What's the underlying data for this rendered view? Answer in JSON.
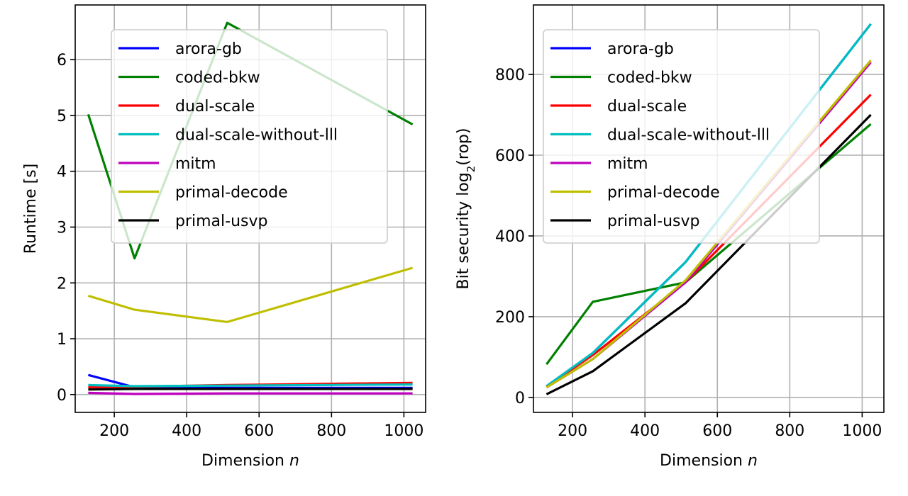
{
  "chart_data": [
    {
      "type": "line",
      "xlabel": "Dimension",
      "xlabel_var": "n",
      "ylabel": "Runtime [s]",
      "xlim": [
        92,
        1060
      ],
      "ylim": [
        -0.32,
        6.98
      ],
      "xticks": [
        200,
        400,
        600,
        800,
        1000
      ],
      "yticks": [
        0,
        1,
        2,
        3,
        4,
        5,
        6
      ],
      "grid": true,
      "legend": "top-center",
      "x": [
        128,
        256,
        512,
        1024
      ],
      "series": [
        {
          "name": "arora-gb",
          "color": "#0000ff",
          "values": [
            0.35,
            0.13,
            0.12,
            0.12
          ]
        },
        {
          "name": "coded-bkw",
          "color": "#008000",
          "values": [
            5.02,
            2.44,
            6.66,
            4.84
          ]
        },
        {
          "name": "dual-scale",
          "color": "#ff0000",
          "values": [
            0.13,
            0.14,
            0.17,
            0.21
          ]
        },
        {
          "name": "dual-scale-without-lll",
          "color": "#00bfbf",
          "values": [
            0.17,
            0.15,
            0.16,
            0.18
          ]
        },
        {
          "name": "mitm",
          "color": "#bf00bf",
          "values": [
            0.03,
            0.01,
            0.02,
            0.02
          ]
        },
        {
          "name": "primal-decode",
          "color": "#bfbf00",
          "values": [
            1.77,
            1.52,
            1.3,
            2.27
          ]
        },
        {
          "name": "primal-usvp",
          "color": "#000000",
          "values": [
            0.09,
            0.1,
            0.1,
            0.1
          ]
        }
      ]
    },
    {
      "type": "line",
      "xlabel": "Dimension",
      "xlabel_var": "n",
      "ylabel": "Bit security log",
      "ylabel_sub": "2",
      "ylabel_suffix": "(rop)",
      "xlim": [
        92,
        1060
      ],
      "ylim": [
        -37,
        972
      ],
      "xticks": [
        200,
        400,
        600,
        800,
        1000
      ],
      "yticks": [
        0,
        200,
        400,
        600,
        800
      ],
      "grid": true,
      "legend": "top-left",
      "x": [
        128,
        256,
        512,
        1024
      ],
      "series": [
        {
          "name": "arora-gb",
          "color": "#0000ff",
          "values": [
            28,
            110,
            335,
            925
          ]
        },
        {
          "name": "coded-bkw",
          "color": "#008000",
          "values": [
            82,
            237,
            285,
            677
          ]
        },
        {
          "name": "dual-scale",
          "color": "#ff0000",
          "values": [
            27,
            105,
            285,
            750
          ]
        },
        {
          "name": "dual-scale-without-lll",
          "color": "#00bfbf",
          "values": [
            28,
            110,
            335,
            925
          ]
        },
        {
          "name": "mitm",
          "color": "#bf00bf",
          "values": [
            25,
            95,
            285,
            830
          ]
        },
        {
          "name": "primal-decode",
          "color": "#bfbf00",
          "values": [
            25,
            95,
            290,
            835
          ]
        },
        {
          "name": "primal-usvp",
          "color": "#000000",
          "values": [
            8,
            65,
            233,
            700
          ]
        }
      ]
    }
  ]
}
